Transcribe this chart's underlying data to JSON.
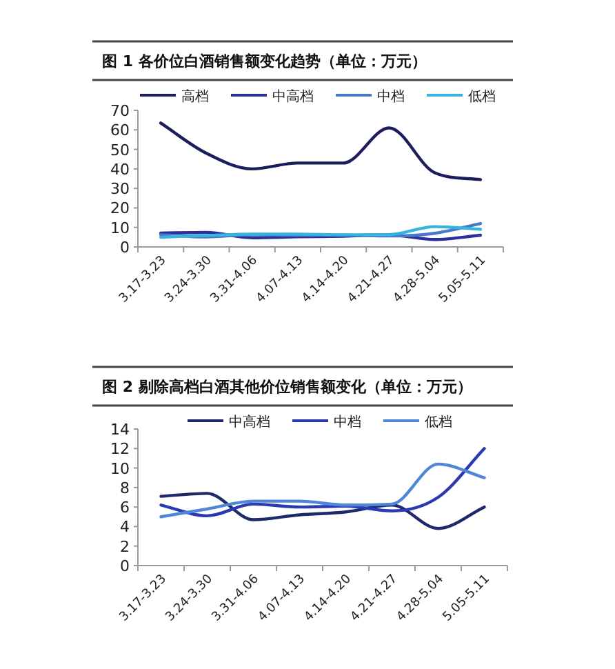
{
  "chart_data": [
    {
      "type": "line",
      "title": "图 1 各价位白酒销售额变化趋势（单位：万元）",
      "categories": [
        "3.17-3.23",
        "3.24-3.30",
        "3.31-4.06",
        "4.07-4.13",
        "4.14-4.20",
        "4.21-4.27",
        "4.28-5.04",
        "5.05-5.11"
      ],
      "series": [
        {
          "name": "高档",
          "color": "#1b1d5c",
          "values": [
            63.5,
            48,
            40,
            43,
            43,
            61,
            38,
            34.5
          ]
        },
        {
          "name": "中高档",
          "color": "#2a2f9a",
          "values": [
            7.1,
            7.4,
            4.7,
            5.2,
            5.5,
            6.2,
            3.8,
            6.0
          ]
        },
        {
          "name": "中档",
          "color": "#4a79c8",
          "values": [
            6.2,
            5.1,
            6.3,
            6.0,
            6.1,
            5.6,
            7.0,
            12.0
          ]
        },
        {
          "name": "低档",
          "color": "#36b4e0",
          "values": [
            5.0,
            5.8,
            6.6,
            6.6,
            6.2,
            6.3,
            10.4,
            9.0
          ]
        }
      ],
      "ylim": [
        0,
        70
      ],
      "yticks": [
        0,
        10,
        20,
        30,
        40,
        50,
        60,
        70
      ],
      "grid": false,
      "legend": "top",
      "marker": "none",
      "line_style": "solid"
    },
    {
      "type": "line",
      "title": "图 2 剔除高档白酒其他价位销售额变化（单位：万元）",
      "categories": [
        "3.17-3.23",
        "3.24-3.30",
        "3.31-4.06",
        "4.07-4.13",
        "4.14-4.20",
        "4.21-4.27",
        "4.28-5.04",
        "5.05-5.11"
      ],
      "series": [
        {
          "name": "中高档",
          "color": "#1f2a6b",
          "values": [
            7.1,
            7.4,
            4.7,
            5.2,
            5.5,
            6.2,
            3.8,
            6.0
          ]
        },
        {
          "name": "中档",
          "color": "#2b3ab0",
          "values": [
            6.2,
            5.1,
            6.3,
            6.0,
            6.1,
            5.6,
            7.0,
            12.0
          ]
        },
        {
          "name": "低档",
          "color": "#4f86d8",
          "values": [
            5.0,
            5.8,
            6.6,
            6.6,
            6.2,
            6.3,
            10.4,
            9.0
          ]
        }
      ],
      "ylim": [
        0,
        14
      ],
      "yticks": [
        0,
        2,
        4,
        6,
        8,
        10,
        12,
        14
      ],
      "grid": false,
      "legend": "top",
      "marker": "none",
      "line_style": "solid"
    }
  ]
}
